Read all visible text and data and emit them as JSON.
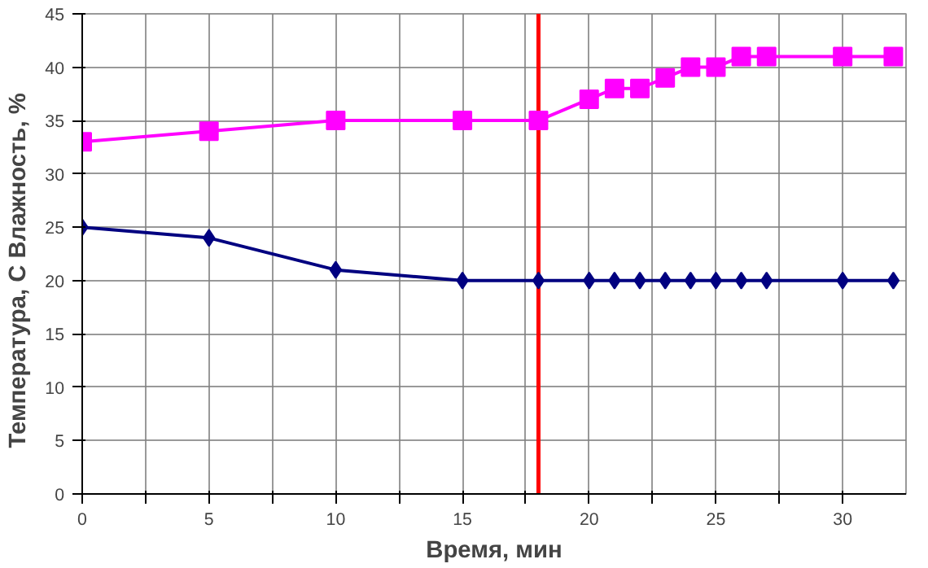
{
  "chart_data": {
    "type": "line",
    "xlabel": "Время, мин",
    "ylabel": "Температура, С      Влажность, %",
    "xlim": [
      0,
      32.5
    ],
    "ylim": [
      0,
      45
    ],
    "xticks": [
      0,
      {
        "value": 2.5,
        "label": null
      },
      5,
      {
        "value": 7.5,
        "label": null
      },
      10,
      {
        "value": 12.5,
        "label": null
      },
      15,
      {
        "value": 17.5,
        "label": null
      },
      20,
      {
        "value": 22.5,
        "label": null
      },
      25,
      {
        "value": 27.5,
        "label": null
      },
      30
    ],
    "yticks": [
      0,
      5,
      10,
      15,
      20,
      25,
      30,
      35,
      40,
      45
    ],
    "grid": true,
    "series": [
      {
        "color": "#ff00ff",
        "marker": "square",
        "x": [
          0,
          5,
          10,
          15,
          18,
          20,
          21,
          22,
          23,
          24,
          25,
          26,
          27,
          30,
          32
        ],
        "values": [
          33,
          34,
          35,
          35,
          35,
          37,
          38,
          38,
          39,
          40,
          40,
          41,
          41,
          41,
          41
        ]
      },
      {
        "color": "#000080",
        "marker": "diamond",
        "x": [
          0,
          5,
          10,
          15,
          18,
          20,
          21,
          22,
          23,
          24,
          25,
          26,
          27,
          30,
          32
        ],
        "values": [
          25,
          24,
          21,
          20,
          20,
          20,
          20,
          20,
          20,
          20,
          20,
          20,
          20,
          20,
          20
        ]
      }
    ],
    "ref_lines": [
      {
        "axis": "x",
        "value": 18,
        "color": "#ff0000"
      }
    ]
  }
}
